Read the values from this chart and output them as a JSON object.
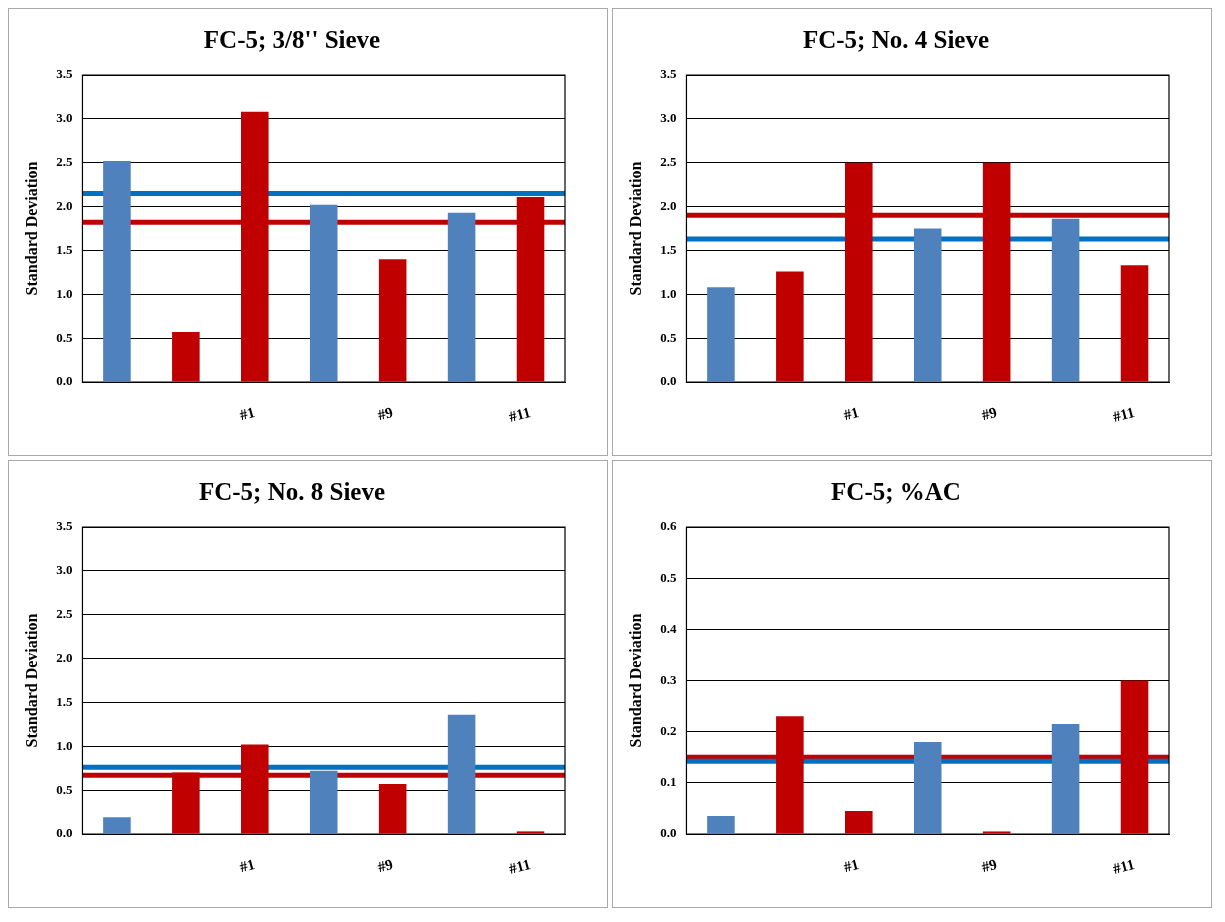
{
  "chart_data": [
    {
      "type": "bar",
      "title": "FC-5; 3/8'' Sieve",
      "ylabel": "Standard Deviation",
      "categories": [
        null,
        null,
        "#1",
        null,
        "#9",
        null,
        "#11"
      ],
      "values": [
        2.52,
        0.57,
        3.08,
        2.02,
        1.4,
        1.93,
        2.11
      ],
      "colors": [
        "#4f81bd",
        "#c00000",
        "#c00000",
        "#4f81bd",
        "#c00000",
        "#4f81bd",
        "#c00000"
      ],
      "ylim": [
        0,
        3.5
      ],
      "yticks": [
        {
          "value": 0,
          "label": "0.0"
        },
        0.5,
        {
          "value": 1,
          "label": "1.0"
        },
        1.5,
        {
          "value": 2,
          "label": "2.0"
        },
        2.5,
        {
          "value": 3,
          "label": "3.0"
        },
        3.5
      ],
      "grid": "y",
      "ref_lines": [
        {
          "axis": "y",
          "value": 2.15,
          "color": "#0070c0"
        },
        {
          "axis": "y",
          "value": 1.82,
          "color": "#c00000"
        }
      ]
    },
    {
      "type": "bar",
      "title": "FC-5; No. 4 Sieve",
      "ylabel": "Standard Deviation",
      "categories": [
        null,
        null,
        "#1",
        null,
        "#9",
        null,
        "#11"
      ],
      "values": [
        1.08,
        1.26,
        2.5,
        1.75,
        2.5,
        1.86,
        1.33
      ],
      "colors": [
        "#4f81bd",
        "#c00000",
        "#c00000",
        "#4f81bd",
        "#c00000",
        "#4f81bd",
        "#c00000"
      ],
      "ylim": [
        0,
        3.5
      ],
      "yticks": [
        {
          "value": 0,
          "label": "0.0"
        },
        0.5,
        {
          "value": 1,
          "label": "1.0"
        },
        1.5,
        {
          "value": 2,
          "label": "2.0"
        },
        2.5,
        {
          "value": 3,
          "label": "3.0"
        },
        3.5
      ],
      "grid": "y",
      "ref_lines": [
        {
          "axis": "y",
          "value": 1.9,
          "color": "#c00000"
        },
        {
          "axis": "y",
          "value": 1.63,
          "color": "#0070c0"
        }
      ]
    },
    {
      "type": "bar",
      "title": "FC-5; No. 8 Sieve",
      "ylabel": "Standard Deviation",
      "categories": [
        null,
        null,
        "#1",
        null,
        "#9",
        null,
        "#11"
      ],
      "values": [
        0.19,
        0.7,
        1.02,
        0.72,
        0.57,
        1.36,
        0.03
      ],
      "colors": [
        "#4f81bd",
        "#c00000",
        "#c00000",
        "#4f81bd",
        "#c00000",
        "#4f81bd",
        "#c00000"
      ],
      "ylim": [
        0,
        3.5
      ],
      "yticks": [
        {
          "value": 0,
          "label": "0.0"
        },
        0.5,
        {
          "value": 1,
          "label": "1.0"
        },
        1.5,
        {
          "value": 2,
          "label": "2.0"
        },
        2.5,
        {
          "value": 3,
          "label": "3.0"
        },
        3.5
      ],
      "grid": "y",
      "ref_lines": [
        {
          "axis": "y",
          "value": 0.76,
          "color": "#0070c0"
        },
        {
          "axis": "y",
          "value": 0.67,
          "color": "#c00000"
        }
      ]
    },
    {
      "type": "bar",
      "title": "FC-5; %AC",
      "ylabel": "Standard Deviation",
      "categories": [
        null,
        null,
        "#1",
        null,
        "#9",
        null,
        "#11"
      ],
      "values": [
        0.035,
        0.23,
        0.045,
        0.18,
        0.005,
        0.215,
        0.3
      ],
      "colors": [
        "#4f81bd",
        "#c00000",
        "#c00000",
        "#4f81bd",
        "#c00000",
        "#4f81bd",
        "#c00000"
      ],
      "ylim": [
        0,
        0.6
      ],
      "yticks": [
        {
          "value": 0,
          "label": "0.0"
        },
        0.1,
        0.2,
        0.3,
        0.4,
        0.5,
        0.6
      ],
      "grid": "y",
      "ref_lines": [
        {
          "axis": "y",
          "value": 0.15,
          "color": "#c00000"
        },
        {
          "axis": "y",
          "value": 0.142,
          "color": "#0070c0"
        }
      ]
    }
  ]
}
